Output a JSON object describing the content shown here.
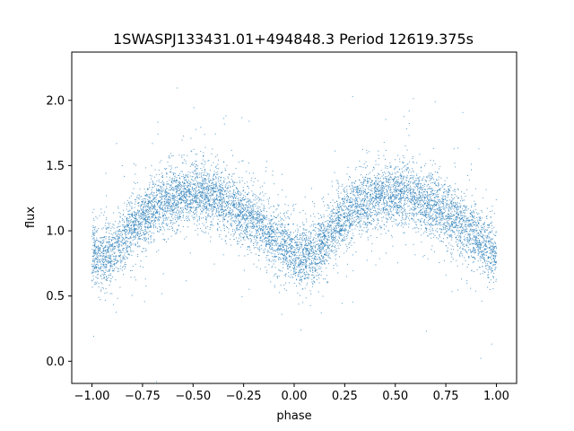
{
  "chart_data": {
    "type": "scatter",
    "title": "1SWASPJ133431.01+494848.3 Period 12619.375s",
    "xlabel": "phase",
    "ylabel": "flux",
    "xlim": [
      -1.1,
      1.1
    ],
    "ylim": [
      -0.17,
      2.37
    ],
    "xticks": [
      -1.0,
      -0.75,
      -0.5,
      -0.25,
      0.0,
      0.25,
      0.5,
      0.75,
      1.0
    ],
    "xtick_labels": [
      "−1.00",
      "−0.75",
      "−0.50",
      "−0.25",
      "0.00",
      "0.25",
      "0.50",
      "0.75",
      "1.00"
    ],
    "yticks": [
      0.0,
      0.5,
      1.0,
      1.5,
      2.0
    ],
    "ytick_labels": [
      "0.0",
      "0.5",
      "1.0",
      "1.5",
      "2.0"
    ],
    "grid": false,
    "point_color": "#1f77b4",
    "series": [
      {
        "phase_period": 1.0,
        "trend": {
          "phase": [
            0.0,
            0.05,
            0.1,
            0.15,
            0.2,
            0.25,
            0.3,
            0.35,
            0.4,
            0.45,
            0.5,
            0.55,
            0.6,
            0.65,
            0.7,
            0.75,
            0.8,
            0.85,
            0.9,
            0.95,
            1.0
          ],
          "flux": [
            0.82,
            0.8,
            0.84,
            0.93,
            1.02,
            1.1,
            1.17,
            1.22,
            1.25,
            1.27,
            1.28,
            1.28,
            1.26,
            1.23,
            1.19,
            1.14,
            1.08,
            1.02,
            0.95,
            0.88,
            0.82
          ]
        },
        "scatter_sigma": 0.12,
        "n_points": 9000
      }
    ]
  }
}
